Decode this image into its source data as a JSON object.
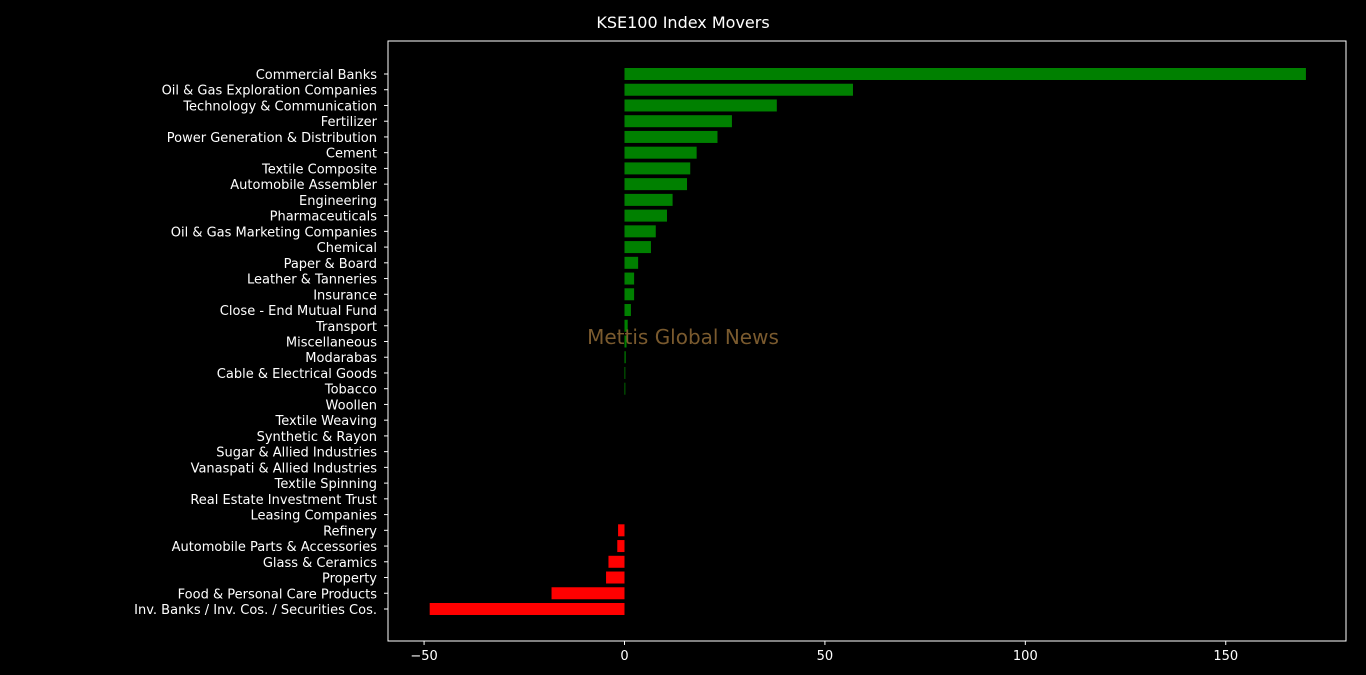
{
  "chart_data": {
    "type": "bar",
    "orientation": "horizontal",
    "title": "KSE100 Index Movers",
    "watermark": "Mettis Global News",
    "xlabel": "",
    "ylabel": "",
    "xlim": [
      -59,
      180
    ],
    "xticks": [
      -50,
      0,
      50,
      100,
      150
    ],
    "grid": false,
    "background": "#000000",
    "positive_color": "#008000",
    "negative_color": "#ff0000",
    "categories": [
      "Commercial Banks",
      "Oil & Gas Exploration Companies",
      "Technology & Communication",
      "Fertilizer",
      "Power Generation & Distribution",
      "Cement",
      "Textile Composite",
      "Automobile Assembler",
      "Engineering",
      "Pharmaceuticals",
      "Oil & Gas Marketing Companies",
      "Chemical",
      "Paper & Board",
      "Leather & Tanneries",
      "Insurance",
      "Close - End Mutual Fund",
      "Transport",
      "Miscellaneous",
      "Modarabas",
      "Cable & Electrical Goods",
      "Tobacco",
      "Woollen",
      "Textile Weaving",
      "Synthetic & Rayon",
      "Sugar & Allied Industries",
      "Vanaspati & Allied Industries",
      "Textile Spinning",
      "Real Estate Investment Trust",
      "Leasing Companies",
      "Refinery",
      "Automobile Parts & Accessories",
      "Glass & Ceramics",
      "Property",
      "Food & Personal Care Products",
      "Inv. Banks / Inv. Cos. / Securities Cos."
    ],
    "values": [
      170.0,
      57.0,
      38.0,
      26.8,
      23.2,
      18.0,
      16.4,
      15.6,
      12.0,
      10.6,
      7.8,
      6.6,
      3.4,
      2.4,
      2.4,
      1.6,
      0.8,
      0.5,
      0.3,
      0.2,
      0.2,
      0.0,
      0.0,
      0.0,
      0.0,
      0.0,
      0.0,
      0.0,
      0.0,
      -1.6,
      -1.8,
      -4.0,
      -4.6,
      -18.2,
      -48.6
    ]
  }
}
